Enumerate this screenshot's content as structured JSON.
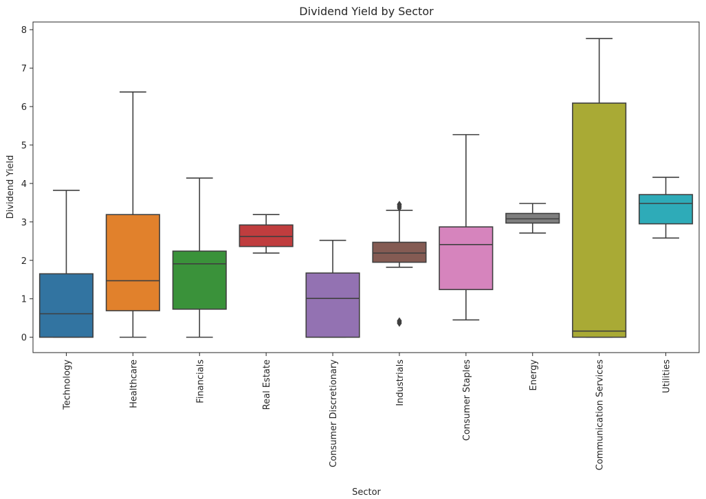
{
  "chart_data": {
    "type": "box",
    "title": "Dividend Yield by Sector",
    "xlabel": "Sector",
    "ylabel": "Dividend Yield",
    "ylim": [
      -0.4,
      8.2
    ],
    "yticks": [
      0,
      1,
      2,
      3,
      4,
      5,
      6,
      7,
      8
    ],
    "grid": false,
    "legend": "none",
    "categories": [
      "Technology",
      "Healthcare",
      "Financials",
      "Real Estate",
      "Consumer Discretionary",
      "Industrials",
      "Consumer Staples",
      "Energy",
      "Communication Services",
      "Utilities"
    ],
    "series": [
      {
        "category": "Technology",
        "whisker_low": 0.0,
        "q1": 0.0,
        "median": 0.61,
        "q3": 1.65,
        "whisker_high": 3.82,
        "outliers": [],
        "color": "#3274a1"
      },
      {
        "category": "Healthcare",
        "whisker_low": 0.0,
        "q1": 0.69,
        "median": 1.47,
        "q3": 3.19,
        "whisker_high": 6.38,
        "outliers": [],
        "color": "#e1812c"
      },
      {
        "category": "Financials",
        "whisker_low": 0.0,
        "q1": 0.73,
        "median": 1.91,
        "q3": 2.24,
        "whisker_high": 4.14,
        "outliers": [],
        "color": "#3a923a"
      },
      {
        "category": "Real Estate",
        "whisker_low": 2.19,
        "q1": 2.36,
        "median": 2.62,
        "q3": 2.92,
        "whisker_high": 3.19,
        "outliers": [],
        "color": "#c03d3e"
      },
      {
        "category": "Consumer Discretionary",
        "whisker_low": 0.0,
        "q1": 0.0,
        "median": 1.01,
        "q3": 1.67,
        "whisker_high": 2.52,
        "outliers": [],
        "color": "#9372b2"
      },
      {
        "category": "Industrials",
        "whisker_low": 1.82,
        "q1": 1.95,
        "median": 2.19,
        "q3": 2.47,
        "whisker_high": 3.3,
        "outliers": [
          0.36,
          0.38,
          0.41,
          0.43,
          3.36,
          3.4,
          3.44,
          3.46
        ],
        "color": "#845b53"
      },
      {
        "category": "Consumer Staples",
        "whisker_low": 0.45,
        "q1": 1.24,
        "median": 2.41,
        "q3": 2.87,
        "whisker_high": 5.27,
        "outliers": [],
        "color": "#d684bd"
      },
      {
        "category": "Energy",
        "whisker_low": 2.71,
        "q1": 2.97,
        "median": 3.08,
        "q3": 3.22,
        "whisker_high": 3.48,
        "outliers": [],
        "color": "#7f7f7f"
      },
      {
        "category": "Communication Services",
        "whisker_low": 0.0,
        "q1": 0.0,
        "median": 0.16,
        "q3": 6.09,
        "whisker_high": 7.77,
        "outliers": [],
        "color": "#a9aa35"
      },
      {
        "category": "Utilities",
        "whisker_low": 2.58,
        "q1": 2.95,
        "median": 3.48,
        "q3": 3.71,
        "whisker_high": 4.16,
        "outliers": [],
        "color": "#2eabb8"
      }
    ]
  }
}
